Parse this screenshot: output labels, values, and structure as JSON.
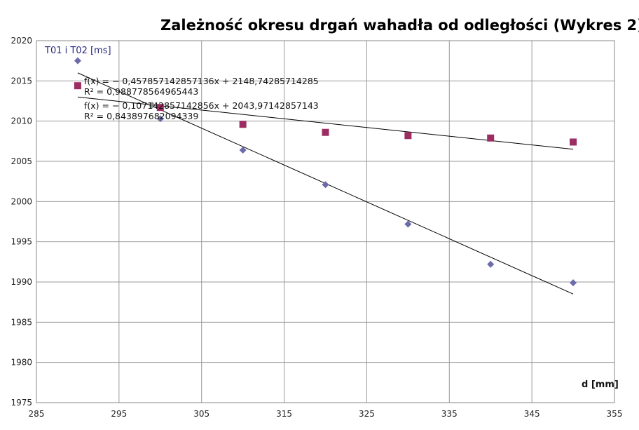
{
  "chart_data": {
    "type": "scatter",
    "title": "Zależność okresu drgań wahadła od odległości (Wykres 2)",
    "ylabel": "T01 i T02 [ms]",
    "xlabel": "d [mm]",
    "xlim": [
      285,
      355
    ],
    "ylim": [
      1975,
      2020
    ],
    "xticks": [
      285,
      295,
      305,
      315,
      325,
      335,
      345,
      355
    ],
    "yticks": [
      1975,
      1980,
      1985,
      1990,
      1995,
      2000,
      2005,
      2010,
      2015,
      2020
    ],
    "grid": true,
    "series": [
      {
        "marker": "diamond",
        "color": "#6b6bab",
        "x": [
          290,
          300,
          310,
          320,
          330,
          340,
          350
        ],
        "y": [
          2017.5,
          2010.3,
          2006.4,
          2002.1,
          1997.2,
          1992.2,
          1989.9
        ]
      },
      {
        "marker": "square",
        "color": "#9b2d63",
        "x": [
          290,
          300,
          310,
          320,
          330,
          340,
          350
        ],
        "y": [
          2014.4,
          2011.7,
          2009.6,
          2008.6,
          2008.2,
          2007.9,
          2007.4
        ]
      }
    ],
    "trendlines": [
      {
        "x1": 290,
        "y1": 2016.0,
        "x2": 350,
        "y2": 1988.5,
        "color": "#000000"
      },
      {
        "x1": 290,
        "y1": 2013.0,
        "x2": 350,
        "y2": 2006.5,
        "color": "#000000"
      }
    ],
    "extra_points": [
      {
        "x": 299,
        "y": 2012.0,
        "color": "#8a8a8a"
      }
    ],
    "annotations": [
      "f(x) = − 0,457857142857136x + 2148,74285714285",
      "R² = 0,988778564965443",
      "f(x) = − 0,107142857142856x + 2043,97142857143",
      "R² = 0,843897682094339"
    ]
  }
}
